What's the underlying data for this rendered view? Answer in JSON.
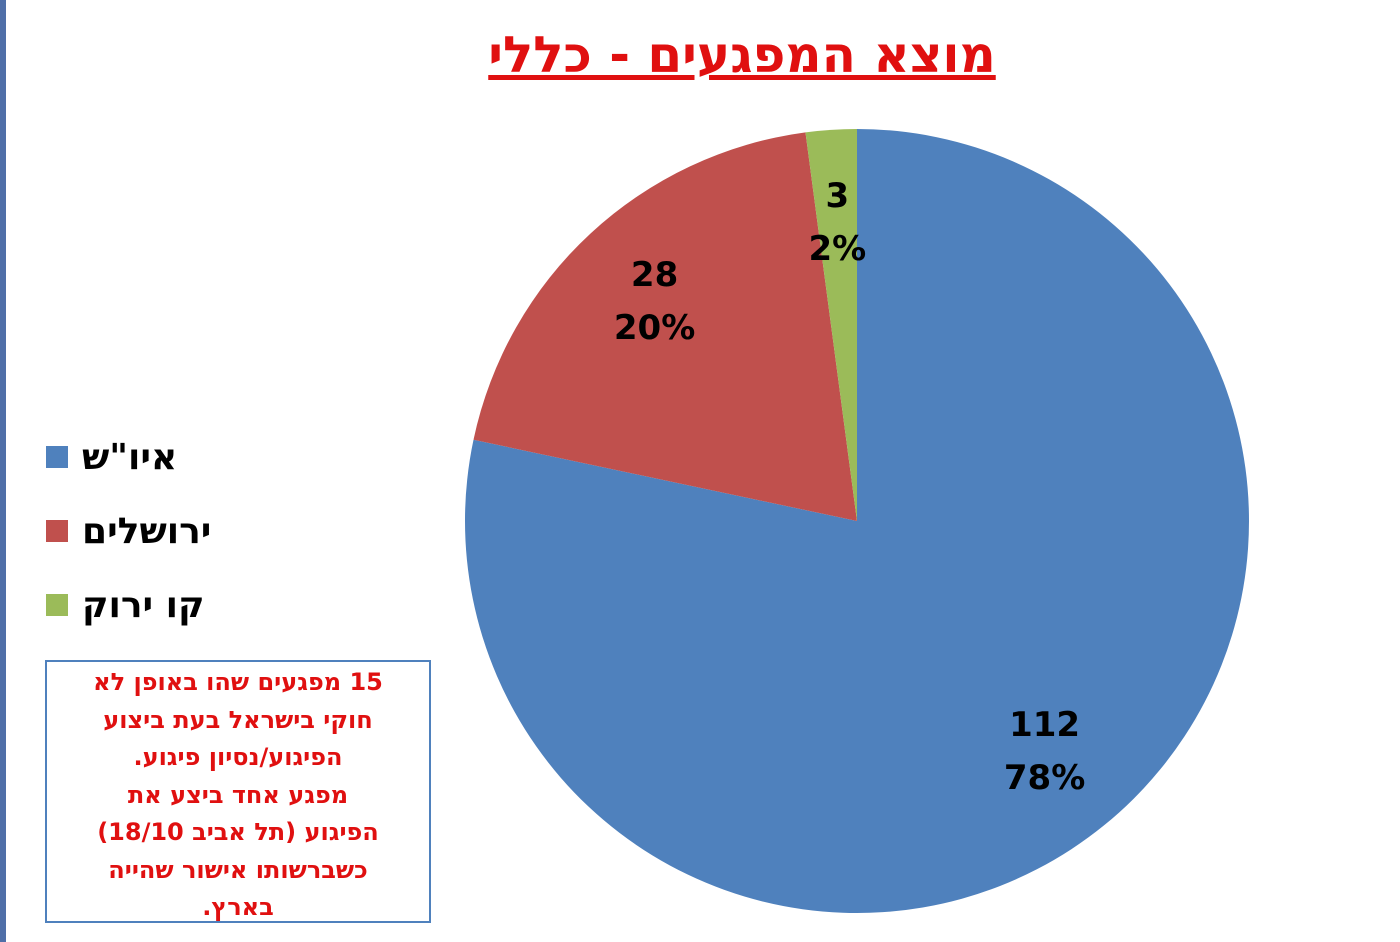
{
  "chart_data": {
    "type": "pie",
    "title": "מוצא המפגעים - כללי",
    "categories": [
      "איו\"ש",
      "ירושלים",
      "קו ירוק"
    ],
    "values": [
      112,
      28,
      3
    ],
    "percents": [
      78,
      20,
      2
    ],
    "percent_labels": [
      "78%",
      "20%",
      "2%"
    ],
    "colors": [
      "#4f81bd",
      "#c0504d",
      "#9bbb59"
    ],
    "annotation": [
      "15 מפגעים שהו באופן לא",
      "חוקי בישראל בעת ביצוע",
      "הפיגוע/נסיון פיגוע.",
      "מפגע אחד ביצע את",
      "הפיגוע (תל אביב 18/10)",
      "כשברשותו אישור שהייה",
      "בארץ."
    ]
  }
}
